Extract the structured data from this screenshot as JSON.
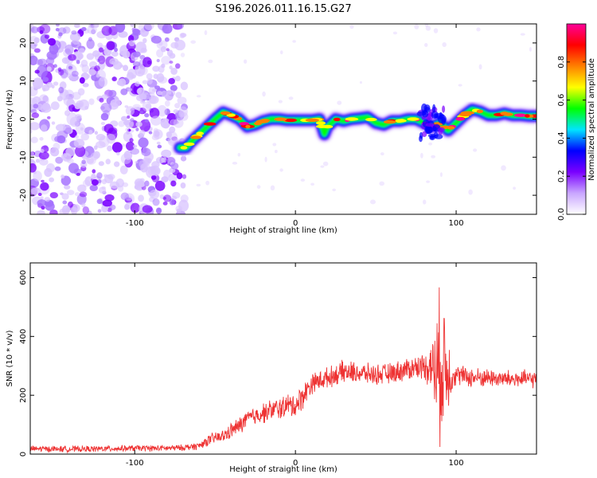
{
  "title": "S196.2026.011.16.15.G27",
  "chart_data": [
    {
      "type": "heatmap",
      "title": "S196.2026.011.16.15.G27",
      "xlabel": "Height of straight line (km)",
      "ylabel": "Frequency (Hz)",
      "xlim": [
        -165,
        150
      ],
      "ylim": [
        -25,
        25
      ],
      "xticks": [
        -100,
        0,
        100
      ],
      "yticks": [
        20,
        10,
        0,
        -10,
        -20
      ],
      "noise_region_x": [
        -165,
        -72
      ],
      "ridge": {
        "x": [
          -72,
          -68,
          -65,
          -60,
          -55,
          -50,
          -45,
          -40,
          -35,
          -30,
          -25,
          -20,
          -15,
          -10,
          -5,
          0,
          5,
          10,
          15,
          18,
          20,
          25,
          30,
          35,
          40,
          45,
          50,
          55,
          60,
          65,
          70,
          75,
          80,
          85,
          90,
          95,
          100,
          105,
          110,
          115,
          120,
          125,
          130,
          135,
          140,
          145,
          150
        ],
        "freq": [
          -7.5,
          -7.5,
          -6,
          -4,
          -2,
          0,
          1.8,
          1,
          0,
          -2,
          -1.5,
          -0.5,
          0,
          0,
          -0.3,
          -0.3,
          -0.3,
          -0.3,
          0,
          -4,
          -2,
          0,
          -0.5,
          0,
          0.2,
          0.5,
          -1,
          -1.5,
          -0.5,
          -0.5,
          0,
          0,
          -1,
          -2,
          -1,
          -3,
          -1,
          1,
          2.5,
          2,
          1,
          1,
          1.5,
          1,
          1,
          0.8,
          0.8
        ]
      },
      "colorbar": {
        "label": "Normalized spectral amplitude",
        "range": [
          0,
          1
        ],
        "ticks": [
          "0.0",
          "0.2",
          "0.4",
          "0.6",
          "0.8"
        ],
        "colors": [
          "#ffffff",
          "#c9a6ff",
          "#7a00ff",
          "#0000ff",
          "#00e5ff",
          "#00ff00",
          "#ffff00",
          "#ff8000",
          "#ff0000",
          "#ff0099"
        ]
      }
    },
    {
      "type": "line",
      "xlabel": "Height of straight line (km)",
      "ylabel": "SNR (10 * v/v)",
      "xlim": [
        -165,
        150
      ],
      "ylim": [
        0,
        650
      ],
      "xticks": [
        -100,
        0,
        100
      ],
      "yticks": [
        0,
        200,
        400,
        600
      ],
      "color": "#ee3333",
      "series": [
        {
          "name": "SNR",
          "x": [
            -165,
            -140,
            -120,
            -100,
            -80,
            -70,
            -60,
            -55,
            -50,
            -45,
            -40,
            -35,
            -30,
            -25,
            -20,
            -15,
            -10,
            -5,
            0,
            5,
            10,
            15,
            20,
            25,
            30,
            40,
            50,
            60,
            70,
            80,
            85,
            88,
            90,
            92,
            95,
            98,
            100,
            105,
            110,
            120,
            130,
            140,
            150
          ],
          "values": [
            18,
            17,
            18,
            20,
            20,
            22,
            28,
            45,
            55,
            60,
            80,
            95,
            120,
            130,
            140,
            150,
            155,
            165,
            165,
            200,
            240,
            250,
            260,
            270,
            280,
            275,
            270,
            275,
            290,
            300,
            300,
            280,
            300,
            310,
            280,
            270,
            270,
            265,
            260,
            260,
            255,
            255,
            255
          ],
          "amplitude": [
            12,
            12,
            12,
            12,
            12,
            12,
            15,
            20,
            25,
            25,
            30,
            35,
            35,
            35,
            40,
            40,
            45,
            45,
            50,
            50,
            40,
            40,
            40,
            40,
            45,
            40,
            40,
            40,
            45,
            50,
            100,
            250,
            300,
            280,
            150,
            60,
            40,
            40,
            40,
            35,
            35,
            35,
            35
          ]
        }
      ]
    }
  ]
}
